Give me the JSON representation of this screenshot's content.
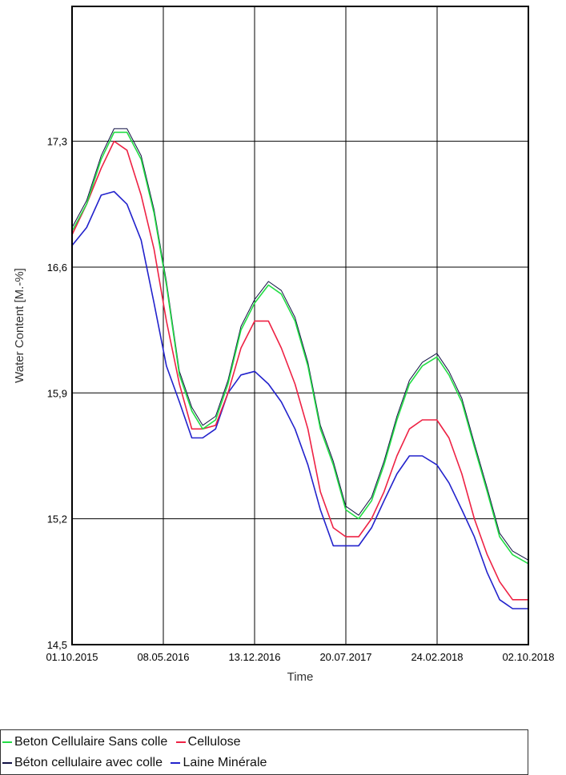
{
  "chart_data": {
    "type": "line",
    "title": "",
    "xlabel": "Time",
    "ylabel": "Water Content [M.-%]",
    "ylim": [
      14.5,
      18.05
    ],
    "xlim": [
      "2015-10-01",
      "2018-10-02"
    ],
    "yticks": [
      "14,5",
      "15,2",
      "15,9",
      "16,6",
      "17,3"
    ],
    "ytick_values": [
      14.5,
      15.2,
      15.9,
      16.6,
      17.3
    ],
    "xticks": [
      "01.10.2015",
      "08.05.2016",
      "13.12.2016",
      "20.07.2017",
      "24.02.2018",
      "02.10.2018"
    ],
    "grid": true,
    "legend_position": "bottom",
    "series": [
      {
        "name": "Beton Cellulaire Sans colle",
        "color": "#22dd44",
        "x": [
          "2015-10-01",
          "2015-11-05",
          "2015-12-10",
          "2016-01-10",
          "2016-02-10",
          "2016-03-15",
          "2016-04-15",
          "2016-05-15",
          "2016-06-15",
          "2016-07-15",
          "2016-08-10",
          "2016-09-10",
          "2016-10-10",
          "2016-11-10",
          "2016-12-13",
          "2017-01-15",
          "2017-02-15",
          "2017-03-20",
          "2017-04-20",
          "2017-05-20",
          "2017-06-20",
          "2017-07-20",
          "2017-08-20",
          "2017-09-20",
          "2017-10-20",
          "2017-11-20",
          "2017-12-20",
          "2018-01-20",
          "2018-02-24",
          "2018-03-25",
          "2018-04-25",
          "2018-05-25",
          "2018-06-25",
          "2018-07-25",
          "2018-08-25",
          "2018-10-02"
        ],
        "values": [
          16.8,
          16.95,
          17.2,
          17.35,
          17.35,
          17.2,
          16.9,
          16.5,
          16.0,
          15.8,
          15.7,
          15.75,
          15.95,
          16.25,
          16.4,
          16.5,
          16.45,
          16.3,
          16.05,
          15.7,
          15.5,
          15.25,
          15.2,
          15.3,
          15.5,
          15.75,
          15.95,
          16.05,
          16.1,
          16.0,
          15.85,
          15.6,
          15.35,
          15.1,
          15.0,
          14.95
        ]
      },
      {
        "name": "Cellulose",
        "color": "#ee2244",
        "x": [
          "2015-10-01",
          "2015-11-05",
          "2015-12-10",
          "2016-01-10",
          "2016-02-10",
          "2016-03-15",
          "2016-04-15",
          "2016-05-15",
          "2016-06-15",
          "2016-07-15",
          "2016-08-10",
          "2016-09-10",
          "2016-10-10",
          "2016-11-10",
          "2016-12-13",
          "2017-01-15",
          "2017-02-15",
          "2017-03-20",
          "2017-04-20",
          "2017-05-20",
          "2017-06-20",
          "2017-07-20",
          "2017-08-20",
          "2017-09-20",
          "2017-10-20",
          "2017-11-20",
          "2017-12-20",
          "2018-01-20",
          "2018-02-24",
          "2018-03-25",
          "2018-04-25",
          "2018-05-25",
          "2018-06-25",
          "2018-07-25",
          "2018-08-25",
          "2018-10-02"
        ],
        "values": [
          16.78,
          16.95,
          17.15,
          17.3,
          17.25,
          17.0,
          16.7,
          16.3,
          15.95,
          15.7,
          15.7,
          15.72,
          15.9,
          16.15,
          16.3,
          16.3,
          16.15,
          15.95,
          15.7,
          15.35,
          15.15,
          15.1,
          15.1,
          15.2,
          15.35,
          15.55,
          15.7,
          15.75,
          15.75,
          15.65,
          15.45,
          15.2,
          15.0,
          14.85,
          14.75,
          14.75
        ]
      },
      {
        "name": "Béton cellulaire avec colle",
        "color": "#111144",
        "x": [
          "2015-10-01",
          "2015-11-05",
          "2015-12-10",
          "2016-01-10",
          "2016-02-10",
          "2016-03-15",
          "2016-04-15",
          "2016-05-15",
          "2016-06-15",
          "2016-07-15",
          "2016-08-10",
          "2016-09-10",
          "2016-10-10",
          "2016-11-10",
          "2016-12-13",
          "2017-01-15",
          "2017-02-15",
          "2017-03-20",
          "2017-04-20",
          "2017-05-20",
          "2017-06-20",
          "2017-07-20",
          "2017-08-20",
          "2017-09-20",
          "2017-10-20",
          "2017-11-20",
          "2017-12-20",
          "2018-01-20",
          "2018-02-24",
          "2018-03-25",
          "2018-04-25",
          "2018-05-25",
          "2018-06-25",
          "2018-07-25",
          "2018-08-25",
          "2018-10-02"
        ],
        "values": [
          16.82,
          16.97,
          17.22,
          17.37,
          17.37,
          17.22,
          16.92,
          16.52,
          16.02,
          15.82,
          15.72,
          15.77,
          15.97,
          16.27,
          16.42,
          16.52,
          16.47,
          16.32,
          16.07,
          15.72,
          15.52,
          15.27,
          15.22,
          15.32,
          15.52,
          15.77,
          15.97,
          16.07,
          16.12,
          16.02,
          15.87,
          15.62,
          15.37,
          15.12,
          15.02,
          14.97
        ]
      },
      {
        "name": "Laine Minérale",
        "color": "#2222cc",
        "x": [
          "2015-10-01",
          "2015-11-05",
          "2015-12-10",
          "2016-01-10",
          "2016-02-10",
          "2016-03-15",
          "2016-04-15",
          "2016-05-15",
          "2016-06-15",
          "2016-07-15",
          "2016-08-10",
          "2016-09-10",
          "2016-10-10",
          "2016-11-10",
          "2016-12-13",
          "2017-01-15",
          "2017-02-15",
          "2017-03-20",
          "2017-04-20",
          "2017-05-20",
          "2017-06-20",
          "2017-07-20",
          "2017-08-20",
          "2017-09-20",
          "2017-10-20",
          "2017-11-20",
          "2017-12-20",
          "2018-01-20",
          "2018-02-24",
          "2018-03-25",
          "2018-04-25",
          "2018-05-25",
          "2018-06-25",
          "2018-07-25",
          "2018-08-25",
          "2018-10-02"
        ],
        "values": [
          16.72,
          16.82,
          17.0,
          17.02,
          16.95,
          16.75,
          16.4,
          16.05,
          15.85,
          15.65,
          15.65,
          15.7,
          15.9,
          16.0,
          16.02,
          15.95,
          15.85,
          15.7,
          15.5,
          15.25,
          15.05,
          15.05,
          15.05,
          15.15,
          15.3,
          15.45,
          15.55,
          15.55,
          15.5,
          15.4,
          15.25,
          15.1,
          14.9,
          14.75,
          14.7,
          14.7
        ]
      }
    ]
  }
}
